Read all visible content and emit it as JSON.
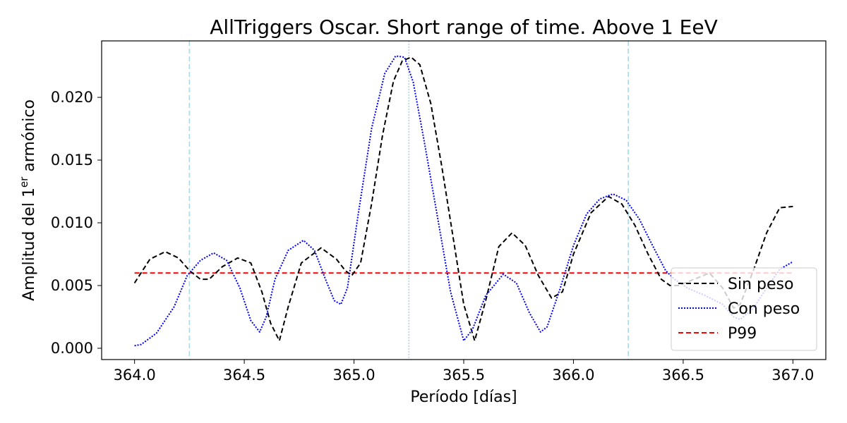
{
  "chart_data": {
    "type": "line",
    "title": "AllTriggers Oscar. Short range of time. Above 1 EeV",
    "xlabel": "Período [días]",
    "ylabel": {
      "prefix": "Amplitud del 1",
      "superscript": "er",
      "suffix": " armónico"
    },
    "xlim": [
      363.85,
      367.15
    ],
    "ylim": [
      -0.0009,
      0.0245
    ],
    "xticks": [
      364.0,
      364.5,
      365.0,
      365.5,
      366.0,
      366.5,
      367.0
    ],
    "xtick_labels": [
      "364.0",
      "364.5",
      "365.0",
      "365.5",
      "366.0",
      "366.5",
      "367.0"
    ],
    "yticks": [
      0.0,
      0.005,
      0.01,
      0.015,
      0.02
    ],
    "ytick_labels": [
      "0.000",
      "0.005",
      "0.010",
      "0.015",
      "0.020"
    ],
    "vertical_lines": [
      {
        "x": 364.25,
        "style": "dashed",
        "color": "#add8e6"
      },
      {
        "x": 365.25,
        "style": "dotted",
        "color": "#add8e6"
      },
      {
        "x": 366.25,
        "style": "dashed",
        "color": "#add8e6"
      }
    ],
    "series": [
      {
        "name": "Sin peso",
        "color": "#000000",
        "style": "dashed",
        "x": [
          364.0,
          364.07,
          364.14,
          364.2,
          364.25,
          364.3,
          364.34,
          364.4,
          364.47,
          364.53,
          364.58,
          364.62,
          364.66,
          364.7,
          364.76,
          364.85,
          364.92,
          364.96,
          364.99,
          365.03,
          365.08,
          365.13,
          365.18,
          365.22,
          365.26,
          365.3,
          365.35,
          365.4,
          365.45,
          365.5,
          365.55,
          365.6,
          365.66,
          365.72,
          365.78,
          365.84,
          365.9,
          365.95,
          366.0,
          366.08,
          366.16,
          366.22,
          366.28,
          366.34,
          366.4,
          366.44,
          366.48,
          366.55,
          366.62,
          366.68,
          366.73,
          366.76,
          366.82,
          366.88,
          366.94,
          367.0
        ],
        "y": [
          0.0052,
          0.0071,
          0.0077,
          0.0072,
          0.0062,
          0.0055,
          0.0055,
          0.0065,
          0.0072,
          0.0068,
          0.0045,
          0.002,
          0.0006,
          0.0033,
          0.0068,
          0.008,
          0.0071,
          0.0062,
          0.0058,
          0.0068,
          0.0115,
          0.017,
          0.0213,
          0.0229,
          0.0232,
          0.0226,
          0.0195,
          0.0145,
          0.009,
          0.0035,
          0.0006,
          0.0038,
          0.0081,
          0.0092,
          0.0082,
          0.0058,
          0.004,
          0.0045,
          0.0075,
          0.0108,
          0.0121,
          0.0115,
          0.0098,
          0.0075,
          0.0055,
          0.005,
          0.005,
          0.0055,
          0.006,
          0.0048,
          0.0032,
          0.0035,
          0.0062,
          0.0092,
          0.0112,
          0.0113
        ]
      },
      {
        "name": "Con peso",
        "color": "#0000ff",
        "style": "dotted",
        "x": [
          364.0,
          364.03,
          364.1,
          364.18,
          364.24,
          364.3,
          364.36,
          364.42,
          364.48,
          364.53,
          364.57,
          364.6,
          364.64,
          364.7,
          364.77,
          364.82,
          364.87,
          364.91,
          364.94,
          364.97,
          365.02,
          365.08,
          365.14,
          365.19,
          365.23,
          365.27,
          365.32,
          365.38,
          365.44,
          365.5,
          365.54,
          365.6,
          365.68,
          365.74,
          365.8,
          365.85,
          365.88,
          365.94,
          366.0,
          366.06,
          366.12,
          366.18,
          366.24,
          366.3,
          366.36,
          366.42,
          366.46,
          366.52,
          366.6,
          366.68,
          366.73,
          366.76,
          366.82,
          366.88,
          366.94,
          367.0
        ],
        "y": [
          0.0002,
          0.0003,
          0.0012,
          0.0033,
          0.0058,
          0.007,
          0.0076,
          0.007,
          0.0048,
          0.0022,
          0.0013,
          0.0025,
          0.0055,
          0.0078,
          0.0086,
          0.0078,
          0.0055,
          0.0038,
          0.0035,
          0.0048,
          0.0108,
          0.0175,
          0.0219,
          0.0233,
          0.0232,
          0.0212,
          0.0165,
          0.0105,
          0.0045,
          0.0006,
          0.0015,
          0.0042,
          0.0059,
          0.0052,
          0.0028,
          0.0013,
          0.0017,
          0.0048,
          0.0082,
          0.0107,
          0.0119,
          0.0123,
          0.0118,
          0.0103,
          0.0082,
          0.0062,
          0.0055,
          0.0048,
          0.0042,
          0.0035,
          0.0025,
          0.0023,
          0.0032,
          0.0048,
          0.0063,
          0.0069
        ]
      },
      {
        "name": "P99",
        "color": "#ff0000",
        "style": "dashed",
        "x": [
          364.0,
          367.0
        ],
        "y": [
          0.006,
          0.006
        ]
      }
    ],
    "legend": {
      "position": "lower right",
      "entries": [
        "Sin peso",
        "Con peso",
        "P99"
      ]
    }
  }
}
